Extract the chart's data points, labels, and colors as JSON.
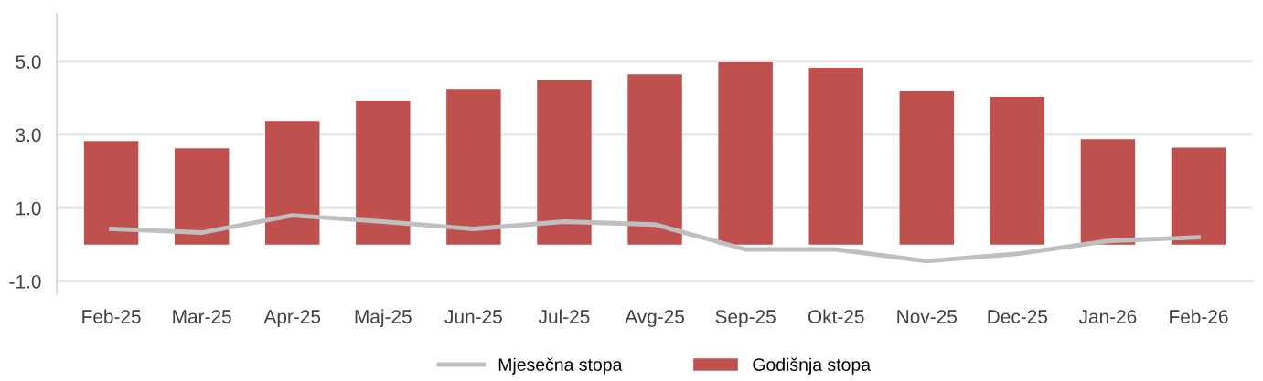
{
  "chart_data": {
    "type": "bar",
    "categories": [
      "Feb-25",
      "Mar-25",
      "Apr-25",
      "Maj-25",
      "Jun-25",
      "Jul-25",
      "Avg-25",
      "Sep-25",
      "Okt-25",
      "Nov-25",
      "Dec-25",
      "Jan-26",
      "Feb-26"
    ],
    "series": [
      {
        "name": "Mjesečna stopa",
        "type": "line",
        "color": "#bfbfbf",
        "values": [
          0.43,
          0.33,
          0.8,
          0.63,
          0.43,
          0.63,
          0.55,
          -0.13,
          -0.13,
          -0.45,
          -0.25,
          0.1,
          0.2
        ]
      },
      {
        "name": "Godišnja stopa",
        "color": "#c0504d",
        "values": [
          2.83,
          2.63,
          3.38,
          3.93,
          4.25,
          4.48,
          4.65,
          4.98,
          4.83,
          4.18,
          4.03,
          2.88,
          2.65
        ]
      }
    ],
    "ylim": [
      -1.35,
      6.3
    ],
    "yticks": [
      {
        "value": -1,
        "label": "-1.0"
      },
      {
        "value": 1,
        "label": "1.0"
      },
      {
        "value": 3,
        "label": "3.0"
      },
      {
        "value": 5,
        "label": "5.0"
      }
    ],
    "grid": "y",
    "legend": "bottom",
    "marker": "none",
    "line_style": "solid"
  }
}
